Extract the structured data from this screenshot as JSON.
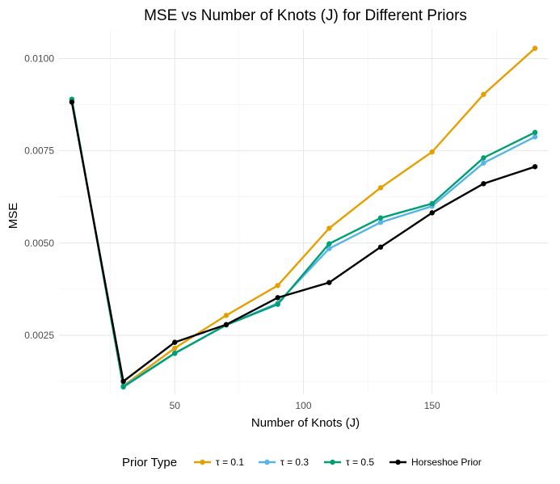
{
  "chart_data": {
    "type": "line",
    "title": "MSE vs Number of Knots (J) for Different Priors",
    "xlabel": "Number of Knots (J)",
    "ylabel": "MSE",
    "xlim": [
      5,
      195
    ],
    "ylim": [
      0.0009,
      0.0108
    ],
    "x_ticks": [
      50,
      100,
      150
    ],
    "x_tick_labels": [
      "50",
      "100",
      "150"
    ],
    "y_ticks": [
      0.0025,
      0.005,
      0.0075,
      0.01
    ],
    "y_tick_labels": [
      "0.0025",
      "0.0050",
      "0.0075",
      "0.0100"
    ],
    "grid": true,
    "legend": {
      "title": "Prior Type",
      "position": "bottom"
    },
    "x": [
      10,
      30,
      50,
      70,
      90,
      110,
      130,
      150,
      170,
      190
    ],
    "series": [
      {
        "name": "τ = 0.1",
        "color": "#E69F00",
        "values": [
          0.00885,
          0.00113,
          0.00215,
          0.00304,
          0.00385,
          0.0054,
          0.0065,
          0.00747,
          0.00903,
          0.01028
        ]
      },
      {
        "name": "τ = 0.3",
        "color": "#56B4E9",
        "values": [
          0.00888,
          0.00112,
          0.00202,
          0.00278,
          0.00337,
          0.00485,
          0.00556,
          0.006,
          0.00717,
          0.00788
        ]
      },
      {
        "name": "τ = 0.5",
        "color": "#009E73",
        "values": [
          0.0089,
          0.0011,
          0.00201,
          0.00278,
          0.00334,
          0.00498,
          0.00568,
          0.00607,
          0.00731,
          0.008
        ]
      },
      {
        "name": "Horseshoe Prior",
        "color": "#000000",
        "values": [
          0.00882,
          0.00125,
          0.00231,
          0.00279,
          0.00352,
          0.00393,
          0.00489,
          0.00582,
          0.00661,
          0.00707
        ]
      }
    ]
  }
}
